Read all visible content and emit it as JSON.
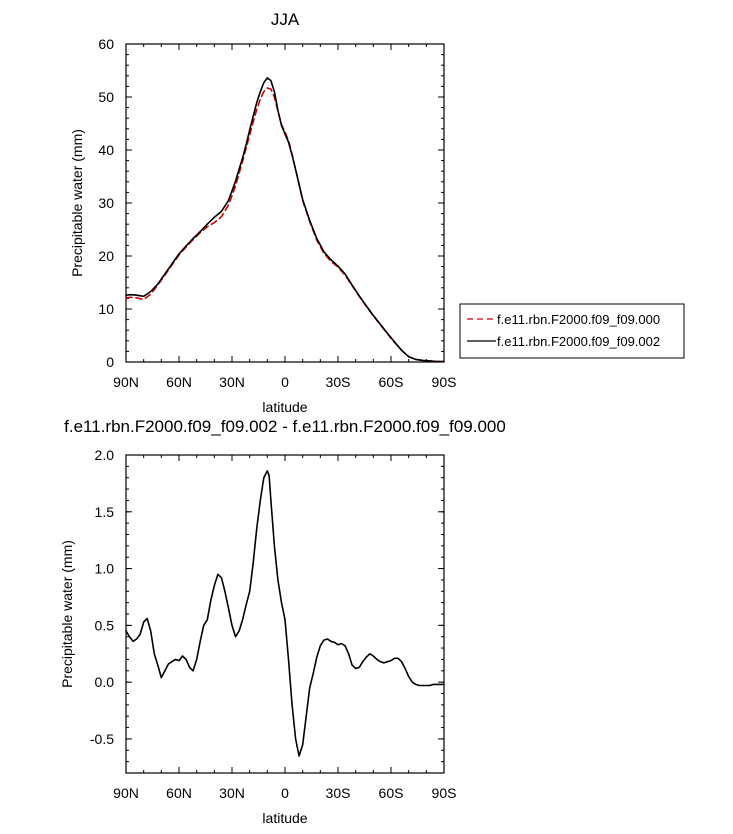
{
  "chart_data": [
    {
      "type": "line",
      "title": "JJA",
      "xlabel": "latitude",
      "ylabel": "Precipitable water (mm)",
      "xlim": [
        90,
        -90
      ],
      "ylim": [
        0,
        60
      ],
      "x_ticks": [
        90,
        60,
        30,
        0,
        -30,
        -60,
        -90
      ],
      "x_tick_labels": [
        "90N",
        "60N",
        "30N",
        "0",
        "30S",
        "60S",
        "90S"
      ],
      "y_ticks": [
        0,
        10,
        20,
        30,
        40,
        50,
        60
      ],
      "y_tick_labels": [
        "0",
        "10",
        "20",
        "30",
        "40",
        "50",
        "60"
      ],
      "legend_position": "right",
      "series": [
        {
          "name": "f.e11.rbn.F2000.f09_f09.000",
          "color": "#cc0000",
          "dash": "dashed",
          "x": [
            90,
            87,
            84,
            80,
            76,
            72,
            68,
            64,
            60,
            56,
            52,
            48,
            44,
            40,
            36,
            32,
            28,
            26,
            24,
            22,
            20,
            18,
            16,
            14,
            12,
            10,
            8,
            6,
            4,
            2,
            0,
            -2,
            -4,
            -6,
            -8,
            -10,
            -14,
            -18,
            -22,
            -26,
            -30,
            -34,
            -38,
            -42,
            -46,
            -50,
            -54,
            -58,
            -62,
            -66,
            -70,
            -74,
            -78,
            -82,
            -86,
            -90
          ],
          "y": [
            12.1,
            12.2,
            12.1,
            11.8,
            12.8,
            14.5,
            16.4,
            18.3,
            20.2,
            21.7,
            23.1,
            24.4,
            25.5,
            26.3,
            27.4,
            29.6,
            33.2,
            35.6,
            37.9,
            40.3,
            42.9,
            45.3,
            47.6,
            49.6,
            51.0,
            51.7,
            51.5,
            50.0,
            47.4,
            44.8,
            43.4,
            41.8,
            39.2,
            36.4,
            33.5,
            30.5,
            26.5,
            23.0,
            20.5,
            19.0,
            17.9,
            16.4,
            14.4,
            12.4,
            10.5,
            8.7,
            7.0,
            5.3,
            3.7,
            2.2,
            1.0,
            0.5,
            0.3,
            0.2,
            0.1,
            0.1
          ]
        },
        {
          "name": "f.e11.rbn.F2000.f09_f09.002",
          "color": "#000000",
          "dash": "solid",
          "x": [
            90,
            87,
            84,
            80,
            76,
            72,
            68,
            64,
            60,
            56,
            52,
            48,
            44,
            40,
            36,
            32,
            28,
            26,
            24,
            22,
            20,
            18,
            16,
            14,
            12,
            10,
            8,
            6,
            4,
            2,
            0,
            -2,
            -4,
            -6,
            -8,
            -10,
            -14,
            -18,
            -22,
            -26,
            -30,
            -34,
            -38,
            -42,
            -46,
            -50,
            -54,
            -58,
            -62,
            -66,
            -70,
            -74,
            -78,
            -82,
            -86,
            -90
          ],
          "y": [
            12.6,
            12.7,
            12.6,
            12.4,
            13.3,
            14.7,
            16.6,
            18.5,
            20.4,
            21.9,
            23.3,
            24.6,
            26.0,
            27.3,
            28.4,
            30.5,
            34.1,
            36.4,
            38.5,
            41.0,
            43.8,
            46.4,
            48.9,
            51.0,
            52.7,
            53.6,
            53.1,
            51.0,
            47.5,
            44.6,
            43.0,
            41.5,
            39.0,
            36.3,
            33.5,
            30.6,
            26.7,
            23.3,
            20.8,
            19.3,
            18.1,
            16.6,
            14.5,
            12.5,
            10.6,
            8.8,
            7.1,
            5.4,
            3.8,
            2.2,
            1.0,
            0.5,
            0.3,
            0.2,
            0.1,
            0.1
          ]
        }
      ]
    },
    {
      "type": "line",
      "title": "f.e11.rbn.F2000.f09_f09.002 - f.e11.rbn.F2000.f09_f09.000",
      "xlabel": "latitude",
      "ylabel": "Precipitable water (mm)",
      "xlim": [
        90,
        -90
      ],
      "ylim": [
        -0.8,
        2.0
      ],
      "x_ticks": [
        90,
        60,
        30,
        0,
        -30,
        -60,
        -90
      ],
      "x_tick_labels": [
        "90N",
        "60N",
        "30N",
        "0",
        "30S",
        "60S",
        "90S"
      ],
      "y_ticks": [
        -0.5,
        0.0,
        0.5,
        1.0,
        1.5,
        2.0
      ],
      "y_tick_labels": [
        "-0.5",
        "0.0",
        "0.5",
        "1.0",
        "1.5",
        "2.0"
      ],
      "series": [
        {
          "color": "#000000",
          "dash": "solid",
          "x": [
            90,
            88,
            86,
            84,
            82,
            80,
            78,
            76,
            74,
            72,
            70,
            68,
            66,
            64,
            62,
            60,
            58,
            56,
            54,
            52,
            50,
            48,
            46,
            44,
            42,
            40,
            38,
            36,
            34,
            32,
            30,
            28,
            26,
            24,
            22,
            20,
            18,
            16,
            14,
            12,
            10,
            9,
            8,
            6,
            4,
            2,
            0,
            -2,
            -4,
            -6,
            -8,
            -10,
            -12,
            -14,
            -16,
            -18,
            -20,
            -22,
            -24,
            -26,
            -28,
            -30,
            -32,
            -34,
            -36,
            -38,
            -40,
            -42,
            -44,
            -46,
            -48,
            -50,
            -52,
            -54,
            -56,
            -58,
            -60,
            -62,
            -64,
            -66,
            -68,
            -70,
            -72,
            -74,
            -76,
            -78,
            -80,
            -82,
            -84,
            -86,
            -88,
            -90
          ],
          "y": [
            0.45,
            0.4,
            0.36,
            0.38,
            0.42,
            0.53,
            0.56,
            0.45,
            0.25,
            0.15,
            0.04,
            0.1,
            0.16,
            0.18,
            0.2,
            0.19,
            0.23,
            0.2,
            0.13,
            0.1,
            0.2,
            0.36,
            0.5,
            0.55,
            0.72,
            0.85,
            0.95,
            0.92,
            0.8,
            0.65,
            0.5,
            0.4,
            0.45,
            0.55,
            0.68,
            0.8,
            1.05,
            1.35,
            1.6,
            1.8,
            1.86,
            1.82,
            1.6,
            1.2,
            0.9,
            0.7,
            0.55,
            0.2,
            -0.2,
            -0.5,
            -0.65,
            -0.55,
            -0.3,
            -0.05,
            0.08,
            0.22,
            0.32,
            0.37,
            0.38,
            0.36,
            0.35,
            0.33,
            0.34,
            0.32,
            0.25,
            0.15,
            0.12,
            0.13,
            0.18,
            0.22,
            0.25,
            0.23,
            0.2,
            0.18,
            0.17,
            0.18,
            0.19,
            0.21,
            0.21,
            0.18,
            0.12,
            0.05,
            0.0,
            -0.02,
            -0.03,
            -0.03,
            -0.03,
            -0.03,
            -0.02,
            -0.02,
            -0.02,
            -0.02
          ]
        }
      ]
    }
  ]
}
